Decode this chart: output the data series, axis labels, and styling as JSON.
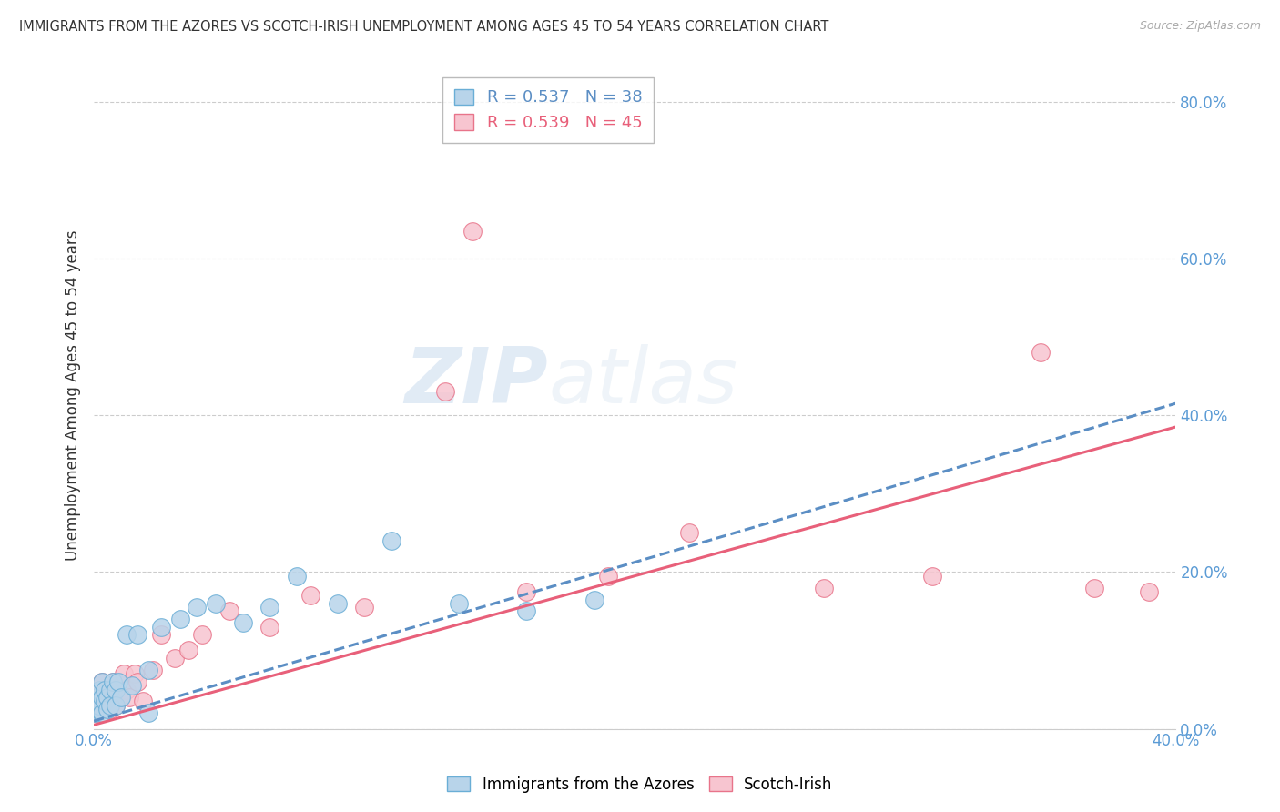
{
  "title": "IMMIGRANTS FROM THE AZORES VS SCOTCH-IRISH UNEMPLOYMENT AMONG AGES 45 TO 54 YEARS CORRELATION CHART",
  "source": "Source: ZipAtlas.com",
  "ylabel": "Unemployment Among Ages 45 to 54 years",
  "legend_label1": "Immigrants from the Azores",
  "legend_label2": "Scotch-Irish",
  "legend_r1": "R = 0.537",
  "legend_n1": "N = 38",
  "legend_r2": "R = 0.539",
  "legend_n2": "N = 45",
  "color_blue": "#b8d4ea",
  "color_blue_edge": "#6aaed6",
  "color_pink": "#f7c5d0",
  "color_pink_edge": "#e8748a",
  "color_blue_line": "#5b8ec4",
  "color_pink_line": "#e8607a",
  "color_tick": "#5b9bd5",
  "background_color": "#ffffff",
  "watermark_zip": "ZIP",
  "watermark_atlas": "atlas",
  "xlim": [
    0.0,
    0.4
  ],
  "ylim": [
    0.0,
    0.85
  ],
  "xticks": [
    0.0,
    0.4
  ],
  "yticks": [
    0.0,
    0.2,
    0.4,
    0.6,
    0.8
  ],
  "grid_yticks": [
    0.0,
    0.2,
    0.4,
    0.6,
    0.8
  ],
  "blue_x": [
    0.0005,
    0.001,
    0.001,
    0.0015,
    0.002,
    0.002,
    0.002,
    0.003,
    0.003,
    0.003,
    0.004,
    0.004,
    0.005,
    0.005,
    0.006,
    0.006,
    0.007,
    0.008,
    0.008,
    0.009,
    0.01,
    0.012,
    0.014,
    0.016,
    0.02,
    0.025,
    0.032,
    0.038,
    0.045,
    0.055,
    0.065,
    0.075,
    0.09,
    0.11,
    0.135,
    0.16,
    0.185,
    0.02
  ],
  "blue_y": [
    0.02,
    0.025,
    0.04,
    0.03,
    0.035,
    0.05,
    0.03,
    0.04,
    0.06,
    0.02,
    0.05,
    0.035,
    0.04,
    0.025,
    0.05,
    0.03,
    0.06,
    0.05,
    0.03,
    0.06,
    0.04,
    0.12,
    0.055,
    0.12,
    0.075,
    0.13,
    0.14,
    0.155,
    0.16,
    0.135,
    0.155,
    0.195,
    0.16,
    0.24,
    0.16,
    0.15,
    0.165,
    0.02
  ],
  "pink_x": [
    0.0005,
    0.001,
    0.001,
    0.002,
    0.002,
    0.003,
    0.003,
    0.003,
    0.004,
    0.004,
    0.005,
    0.005,
    0.006,
    0.006,
    0.007,
    0.007,
    0.008,
    0.008,
    0.009,
    0.01,
    0.011,
    0.012,
    0.013,
    0.015,
    0.016,
    0.018,
    0.022,
    0.025,
    0.03,
    0.035,
    0.04,
    0.05,
    0.065,
    0.08,
    0.1,
    0.13,
    0.16,
    0.19,
    0.22,
    0.27,
    0.31,
    0.35,
    0.37,
    0.39,
    0.14
  ],
  "pink_y": [
    0.02,
    0.025,
    0.04,
    0.03,
    0.05,
    0.03,
    0.04,
    0.06,
    0.025,
    0.05,
    0.03,
    0.04,
    0.025,
    0.05,
    0.04,
    0.06,
    0.03,
    0.05,
    0.04,
    0.055,
    0.07,
    0.05,
    0.04,
    0.07,
    0.06,
    0.035,
    0.075,
    0.12,
    0.09,
    0.1,
    0.12,
    0.15,
    0.13,
    0.17,
    0.155,
    0.43,
    0.175,
    0.195,
    0.25,
    0.18,
    0.195,
    0.48,
    0.18,
    0.175,
    0.635
  ],
  "blue_line_x0": 0.0,
  "blue_line_x1": 0.4,
  "blue_line_y0": 0.01,
  "blue_line_y1": 0.415,
  "pink_line_x0": 0.0,
  "pink_line_x1": 0.4,
  "pink_line_y0": 0.005,
  "pink_line_y1": 0.385
}
